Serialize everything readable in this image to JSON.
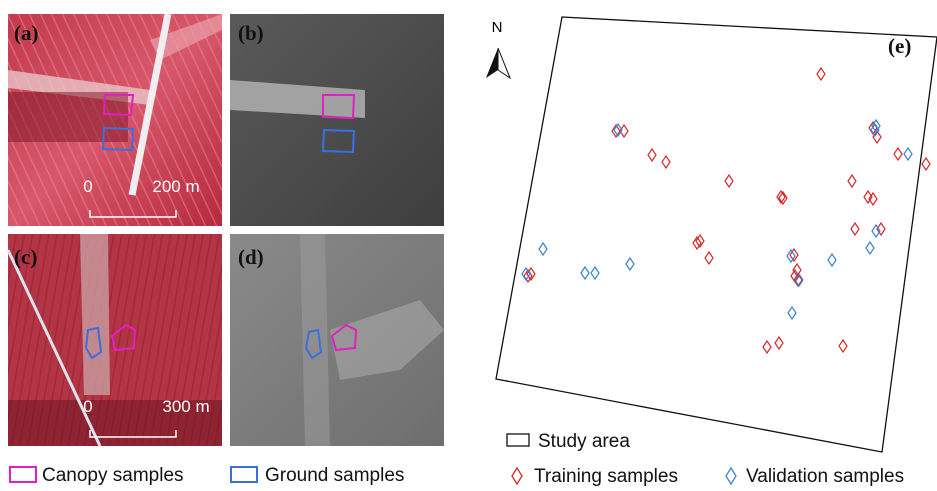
{
  "panels": [
    {
      "label": "(a)",
      "scale_start": "0",
      "scale_end": "200 m"
    },
    {
      "label": "(b)"
    },
    {
      "label": "(c)",
      "scale_start": "0",
      "scale_end": "300 m"
    },
    {
      "label": "(d)"
    }
  ],
  "map": {
    "label": "(e)",
    "north": "N"
  },
  "legend": {
    "canopy": "Canopy samples",
    "ground": "Ground samples",
    "study_area": "Study area",
    "training": "Training samples",
    "validation": "Validation samples"
  }
}
